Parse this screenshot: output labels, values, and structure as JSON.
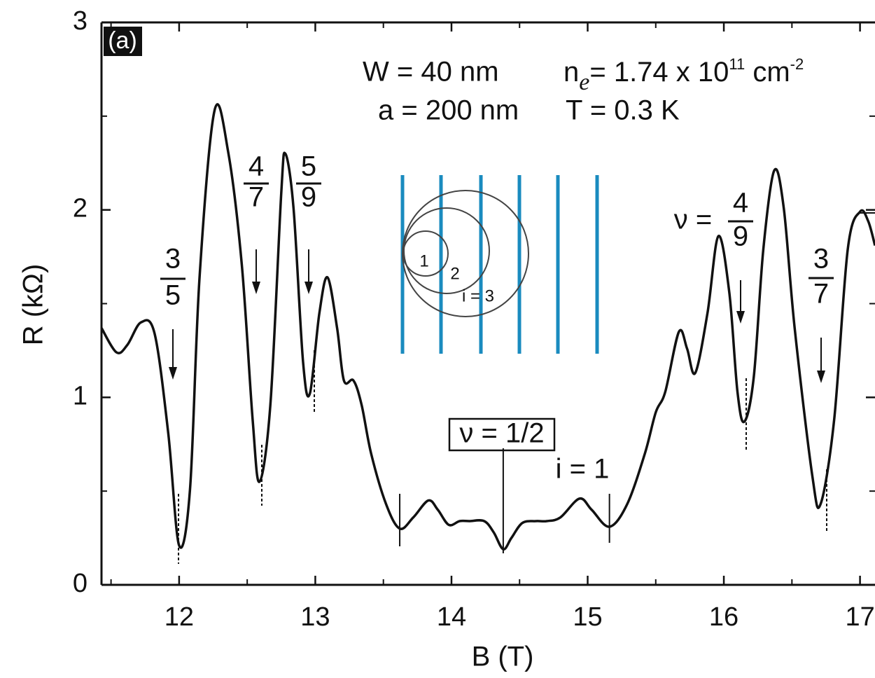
{
  "chart_data": {
    "type": "line",
    "panel_label": "(a)",
    "x_label": "B (T)",
    "y_label": "R (kΩ)",
    "xlim": [
      11.43,
      17.11
    ],
    "ylim": [
      0,
      3
    ],
    "xticks": [
      12,
      13,
      14,
      15,
      16,
      17
    ],
    "yticks": [
      0,
      1,
      2,
      3
    ],
    "xminorticks": [
      11.5,
      12.5,
      13.5,
      14.5,
      15.5,
      16.5
    ],
    "yminorticks": [
      0.5,
      1.5,
      2.5
    ],
    "x": [
      11.43,
      11.54,
      11.62,
      11.72,
      11.82,
      11.92,
      12.0,
      12.08,
      12.15,
      12.26,
      12.36,
      12.46,
      12.54,
      12.59,
      12.67,
      12.75,
      12.78,
      12.84,
      12.91,
      12.96,
      13.03,
      13.09,
      13.16,
      13.21,
      13.28,
      13.34,
      13.41,
      13.52,
      13.62,
      13.72,
      13.83,
      13.9,
      13.98,
      14.06,
      14.13,
      14.24,
      14.31,
      14.38,
      14.44,
      14.52,
      14.62,
      14.7,
      14.8,
      14.94,
      15.03,
      15.16,
      15.29,
      15.42,
      15.5,
      15.57,
      15.67,
      15.73,
      15.79,
      15.88,
      15.96,
      16.04,
      16.1,
      16.15,
      16.22,
      16.29,
      16.37,
      16.44,
      16.52,
      16.65,
      16.71,
      16.81,
      16.91,
      17.0,
      17.06,
      17.11
    ],
    "series": [
      {
        "color": "#111111",
        "values": [
          1.37,
          1.24,
          1.28,
          1.4,
          1.34,
          0.81,
          0.21,
          0.51,
          1.64,
          2.53,
          2.31,
          1.71,
          0.88,
          0.55,
          0.96,
          2.09,
          2.3,
          2.01,
          1.19,
          1.02,
          1.45,
          1.64,
          1.37,
          1.09,
          1.09,
          0.96,
          0.7,
          0.43,
          0.3,
          0.36,
          0.45,
          0.4,
          0.32,
          0.34,
          0.34,
          0.34,
          0.28,
          0.19,
          0.25,
          0.33,
          0.34,
          0.34,
          0.36,
          0.46,
          0.4,
          0.31,
          0.43,
          0.7,
          0.92,
          1.03,
          1.35,
          1.26,
          1.13,
          1.45,
          1.86,
          1.56,
          1.03,
          0.87,
          1.11,
          1.79,
          2.21,
          2.01,
          1.37,
          0.58,
          0.43,
          0.88,
          1.79,
          1.99,
          1.94,
          1.81
        ]
      }
    ],
    "markers": [
      13.62,
      14.38,
      15.16
    ],
    "fractions": [
      {
        "num": "3",
        "den": "5"
      },
      {
        "num": "4",
        "den": "7"
      },
      {
        "num": "5",
        "den": "9"
      },
      {
        "prefix": "ν =",
        "num": "4",
        "den": "9"
      },
      {
        "num": "3",
        "den": "7"
      }
    ],
    "half_filling_label": "ν = 1/2",
    "i_label": "i = 1",
    "params": {
      "W": "W = 40 nm",
      "ne_base": "n",
      "ne_sub": "e",
      "ne_value": "= 1.74 x 10",
      "ne_exp": "11",
      "ne_unit": " cm",
      "ne_unit_exp": "-2",
      "a": "a = 200 nm",
      "T": "T = 0.3 K"
    },
    "inset_labels": [
      "1",
      "2",
      "i = 3"
    ]
  }
}
